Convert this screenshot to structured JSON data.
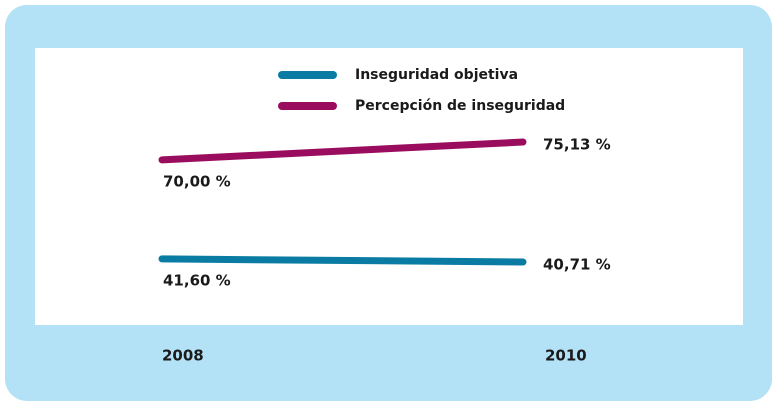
{
  "chart_data": {
    "type": "line",
    "categories": [
      "2008",
      "2010"
    ],
    "series": [
      {
        "name": "Inseguridad objetiva",
        "color": "#0a7ca3",
        "values": [
          41.6,
          40.71
        ],
        "value_labels": [
          "41,60 %",
          "40,71 %"
        ]
      },
      {
        "name": "Percepción de inseguridad",
        "color": "#9a0d5e",
        "values": [
          70,
          75.13
        ],
        "value_labels": [
          "70,00 %",
          "75,13 %"
        ]
      }
    ]
  }
}
